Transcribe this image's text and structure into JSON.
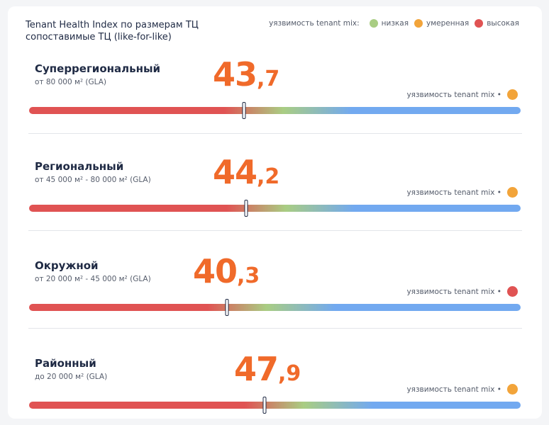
{
  "title_line1": "Tenant Health Index по размерам ТЦ",
  "title_line2": "сопоставимые ТЦ (like-for-like)",
  "legend": {
    "label": "уязвимость tenant mix:",
    "items": [
      {
        "label": "низкая",
        "color": "#a9cd83"
      },
      {
        "label": "умеренная",
        "color": "#f2a43a"
      },
      {
        "label": "высокая",
        "color": "#e05353"
      }
    ]
  },
  "vuln_label": "уязвимость tenant mix •",
  "colors": {
    "score": "#f06a2a",
    "bar_low": "#e05353",
    "bar_mid": "#a9cd83",
    "bar_high": "#72a9f0"
  },
  "chart_data": {
    "type": "bar",
    "axis_range": [
      0,
      100
    ],
    "categories": [
      "Суперрегиональный",
      "Региональный",
      "Окружной",
      "Районный"
    ],
    "values": [
      43.7,
      44.2,
      40.3,
      47.9
    ],
    "items": [
      {
        "name": "Суперрегиональный",
        "subtitle": "от 80 000 м² (GLA)",
        "value": 43.7,
        "int": "43",
        "sep": ",",
        "dec": "7",
        "vulnerability": "умеренная",
        "vuln_color": "#f2a43a"
      },
      {
        "name": "Региональный",
        "subtitle": "от 45 000 м² - 80 000 м² (GLA)",
        "value": 44.2,
        "int": "44",
        "sep": ",",
        "dec": "2",
        "vulnerability": "умеренная",
        "vuln_color": "#f2a43a"
      },
      {
        "name": "Окружной",
        "subtitle": "от 20 000 м² - 45 000 м² (GLA)",
        "value": 40.3,
        "int": "40",
        "sep": ",",
        "dec": "3",
        "vulnerability": "высокая",
        "vuln_color": "#e05353"
      },
      {
        "name": "Районный",
        "subtitle": "до 20 000 м² (GLA)",
        "value": 47.9,
        "int": "47",
        "sep": ",",
        "dec": "9",
        "vulnerability": "умеренная",
        "vuln_color": "#f2a43a"
      }
    ]
  }
}
